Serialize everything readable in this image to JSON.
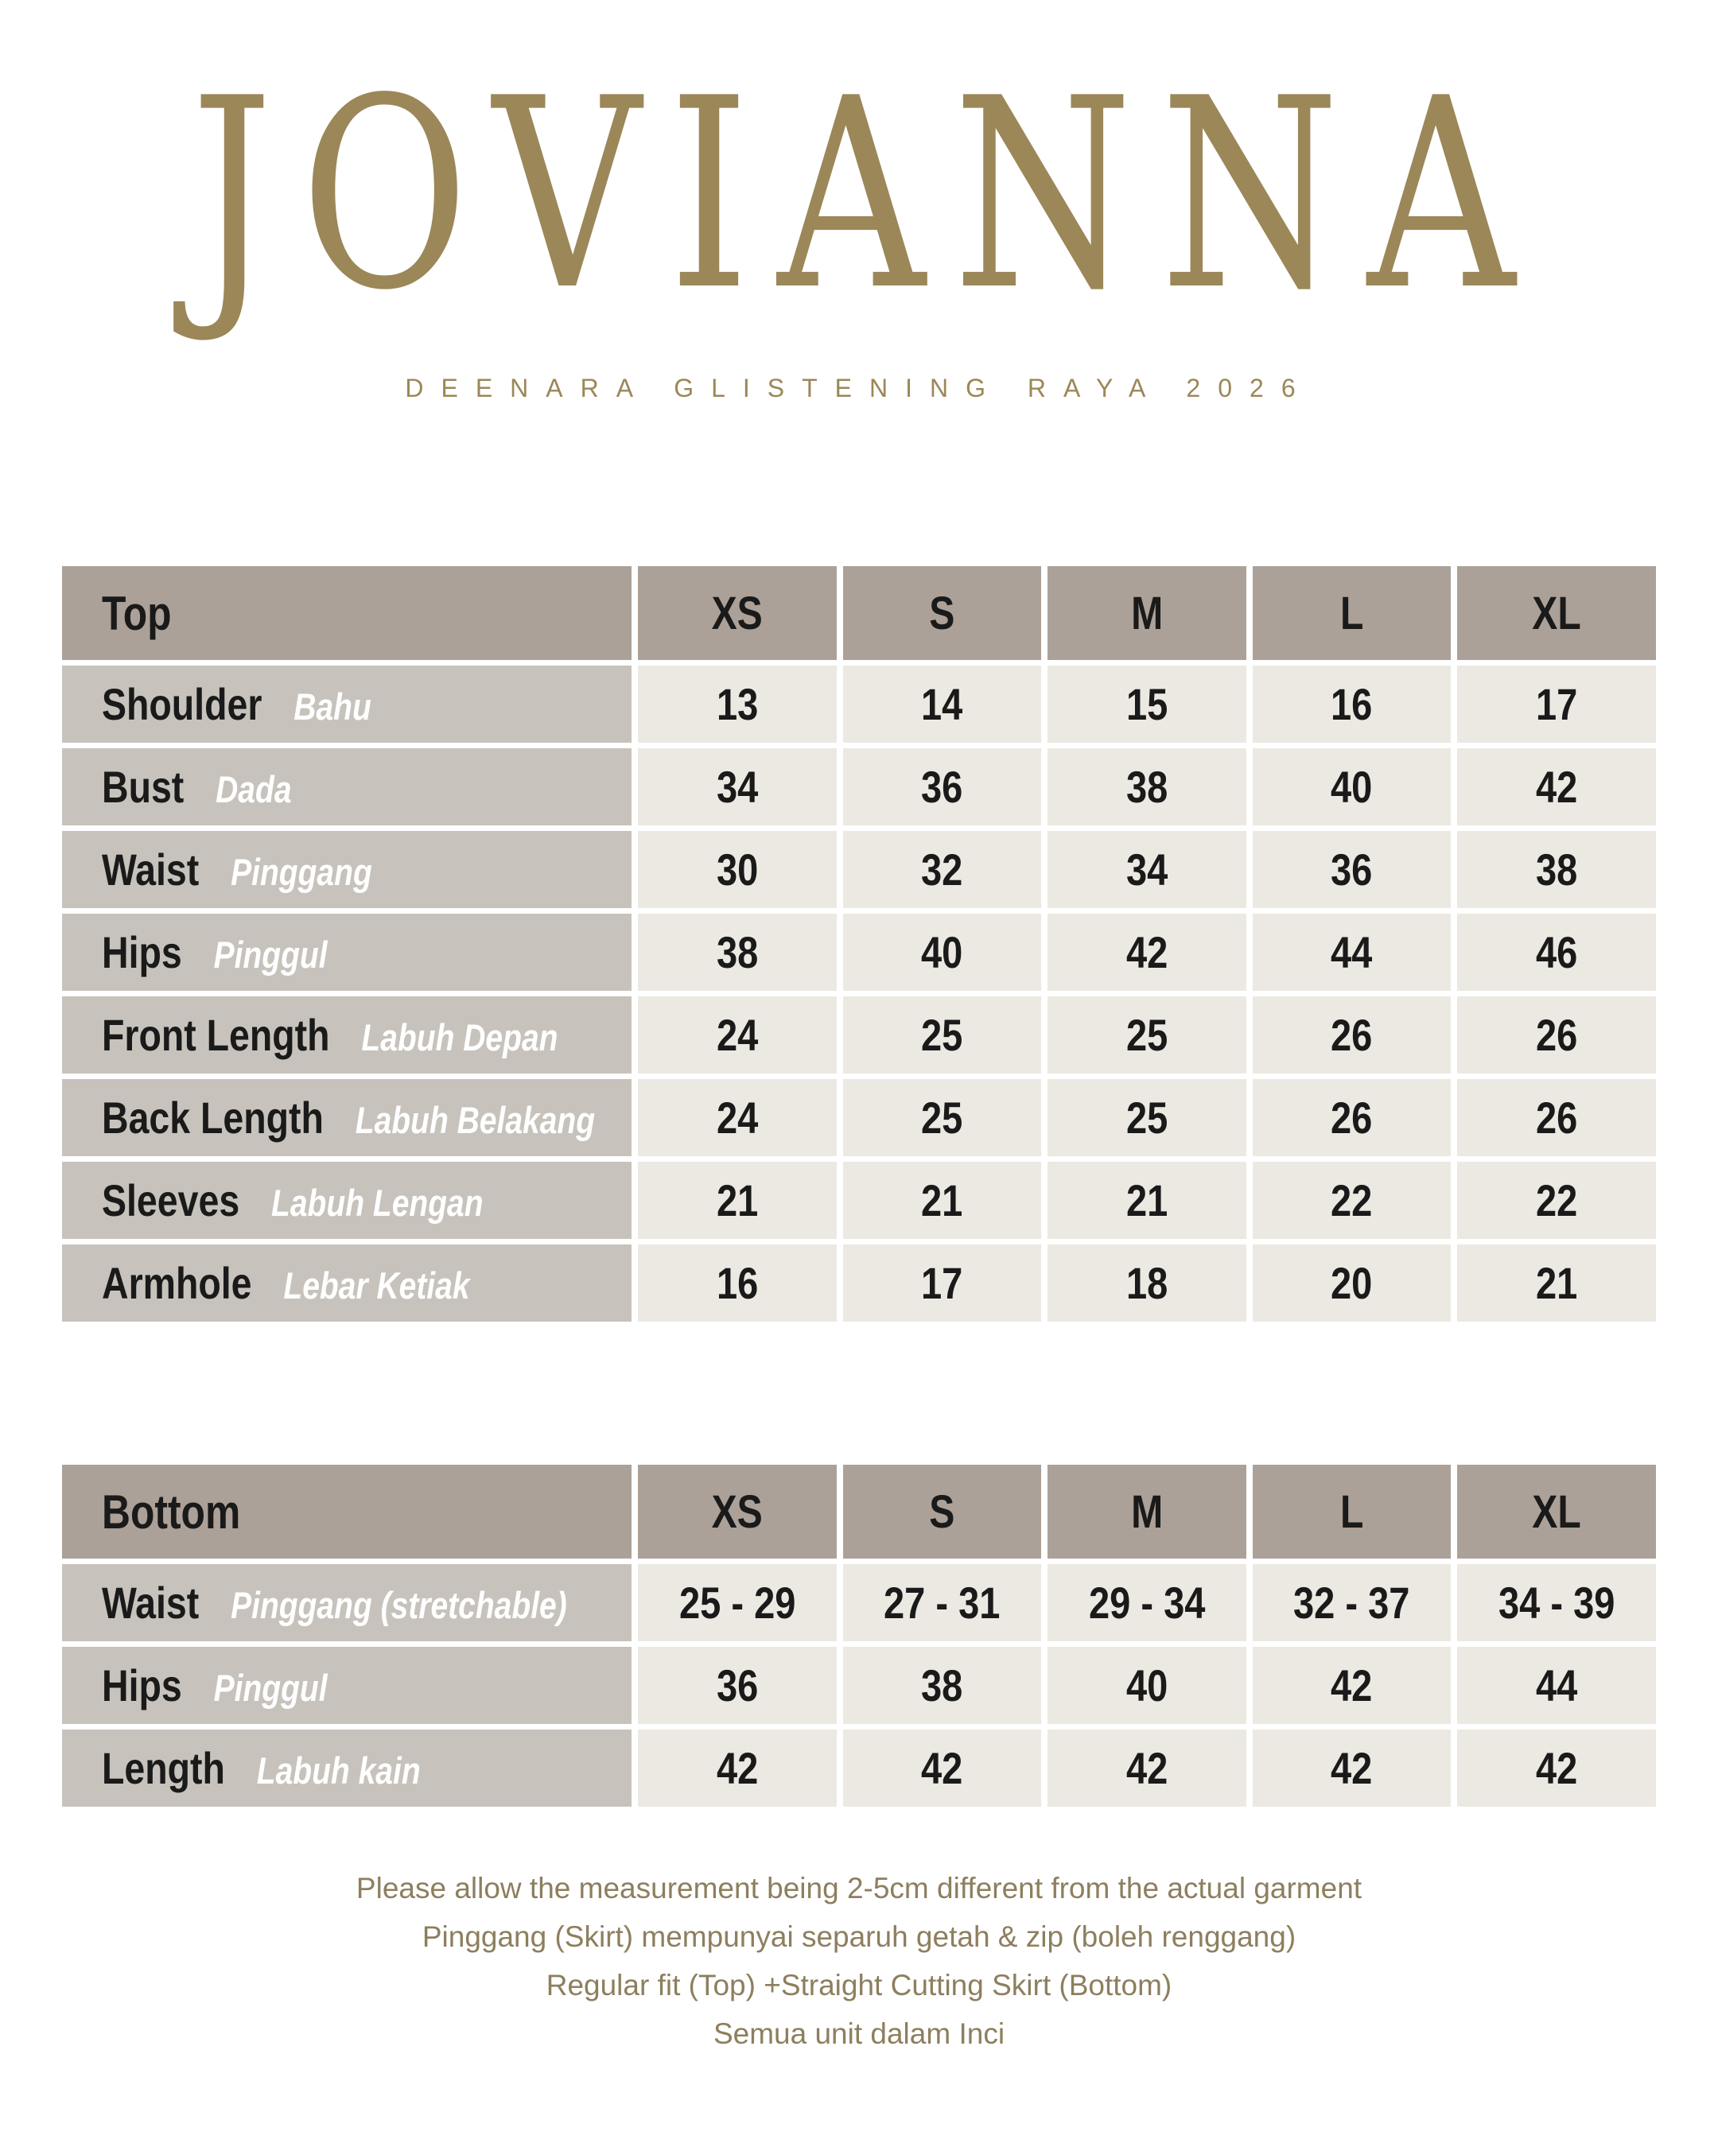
{
  "brand": {
    "logo": "JOVIANNA",
    "subtitle": "DEENARA GLISTENING RAYA 2026"
  },
  "colors": {
    "brand_gold": "#9b8758",
    "footer_gold": "#8d7f5e",
    "table_header_bg": "#aca198",
    "row_label_bg": "#c7c3bc",
    "value_cell_bg": "#ece9e2",
    "text_ink": "#1a1a1a",
    "page_bg": "#ffffff"
  },
  "size_headers": [
    "XS",
    "S",
    "M",
    "L",
    "XL"
  ],
  "tables": {
    "top": {
      "title": "Top",
      "rows": [
        {
          "label_en": "Shoulder",
          "label_my": "Bahu",
          "values": [
            "13",
            "14",
            "15",
            "16",
            "17"
          ]
        },
        {
          "label_en": "Bust",
          "label_my": "Dada",
          "values": [
            "34",
            "36",
            "38",
            "40",
            "42"
          ]
        },
        {
          "label_en": "Waist",
          "label_my": "Pinggang",
          "values": [
            "30",
            "32",
            "34",
            "36",
            "38"
          ]
        },
        {
          "label_en": "Hips",
          "label_my": "Pinggul",
          "values": [
            "38",
            "40",
            "42",
            "44",
            "46"
          ]
        },
        {
          "label_en": "Front Length",
          "label_my": "Labuh Depan",
          "values": [
            "24",
            "25",
            "25",
            "26",
            "26"
          ]
        },
        {
          "label_en": "Back Length",
          "label_my": "Labuh Belakang",
          "values": [
            "24",
            "25",
            "25",
            "26",
            "26"
          ]
        },
        {
          "label_en": "Sleeves",
          "label_my": "Labuh Lengan",
          "values": [
            "21",
            "21",
            "21",
            "22",
            "22"
          ]
        },
        {
          "label_en": "Armhole",
          "label_my": "Lebar Ketiak",
          "values": [
            "16",
            "17",
            "18",
            "20",
            "21"
          ]
        }
      ]
    },
    "bottom": {
      "title": "Bottom",
      "rows": [
        {
          "label_en": "Waist",
          "label_my": "Pinggang (stretchable)",
          "values": [
            "25 - 29",
            "27 - 31",
            "29 - 34",
            "32 - 37",
            "34 - 39"
          ]
        },
        {
          "label_en": "Hips",
          "label_my": "Pinggul",
          "values": [
            "36",
            "38",
            "40",
            "42",
            "44"
          ]
        },
        {
          "label_en": "Length",
          "label_my": "Labuh kain",
          "values": [
            "42",
            "42",
            "42",
            "42",
            "42"
          ]
        }
      ]
    }
  },
  "footer": {
    "lines": [
      "Please allow the measurement being 2-5cm different from the actual garment",
      "Pinggang (Skirt) mempunyai separuh getah & zip (boleh renggang)",
      "Regular fit (Top) +Straight Cutting Skirt (Bottom)",
      "Semua unit dalam Inci"
    ]
  }
}
